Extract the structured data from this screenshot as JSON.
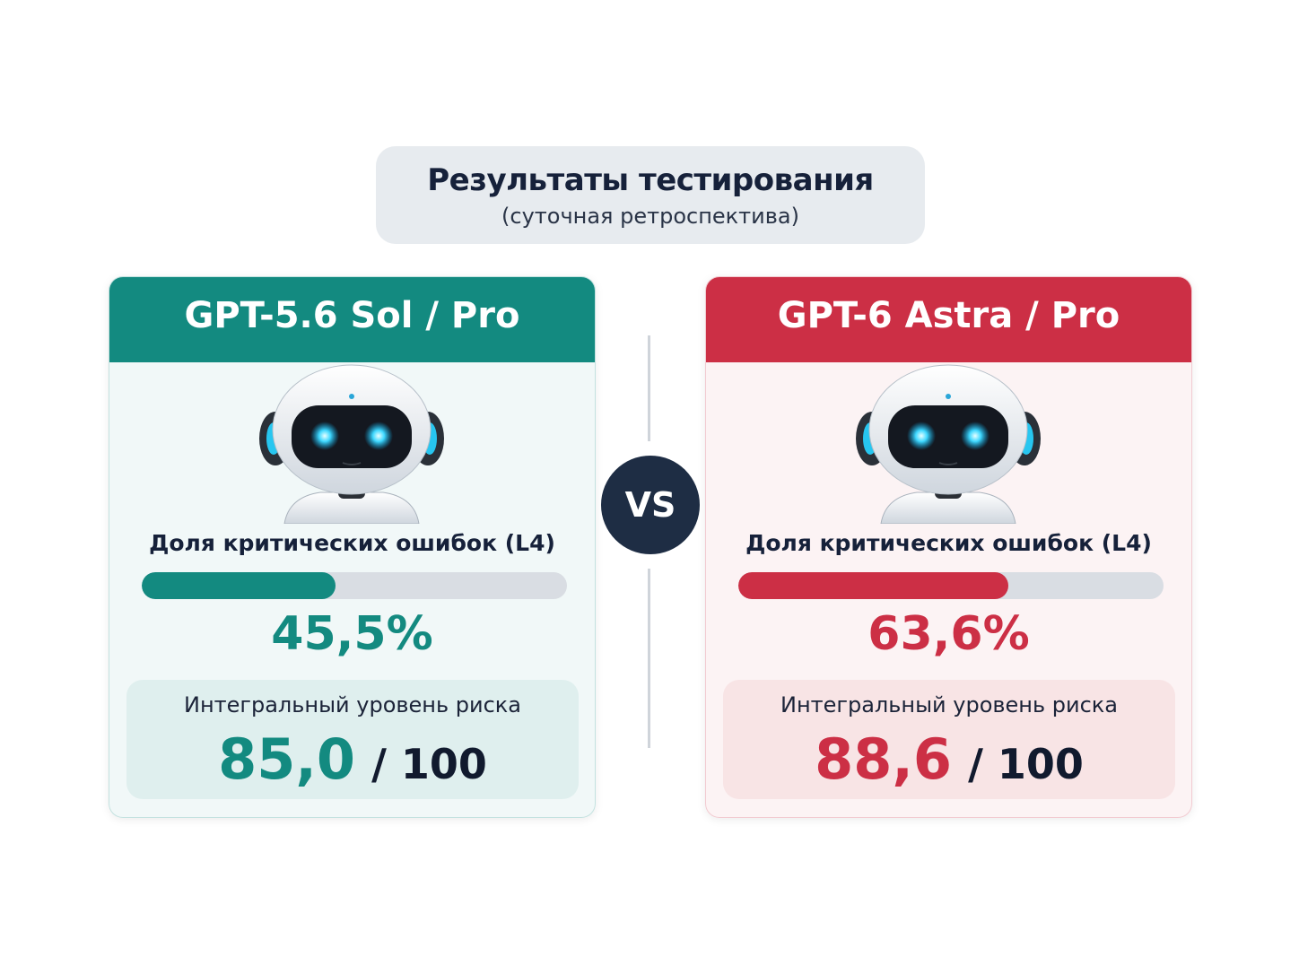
{
  "header": {
    "title": "Результаты тестирования",
    "subtitle": "(суточная ретроспектива)"
  },
  "vs": "VS",
  "models": [
    {
      "name": "GPT-5.6 Sol / Pro",
      "color": "#138a80",
      "metric_label": "Доля критических ошибок (L4)",
      "error_share": 45.5,
      "error_share_label": "45,5%",
      "risk_label": "Интегральный уровень риска",
      "risk_score": 85.0,
      "risk_score_label": "85,0",
      "risk_scale": "/ 100"
    },
    {
      "name": "GPT-6 Astra / Pro",
      "color": "#cc2f45",
      "metric_label": "Доля критических ошибок (L4)",
      "error_share": 63.6,
      "error_share_label": "63,6%",
      "risk_label": "Интегральный уровень риска",
      "risk_score": 88.6,
      "risk_score_label": "88,6",
      "risk_scale": "/ 100"
    }
  ]
}
